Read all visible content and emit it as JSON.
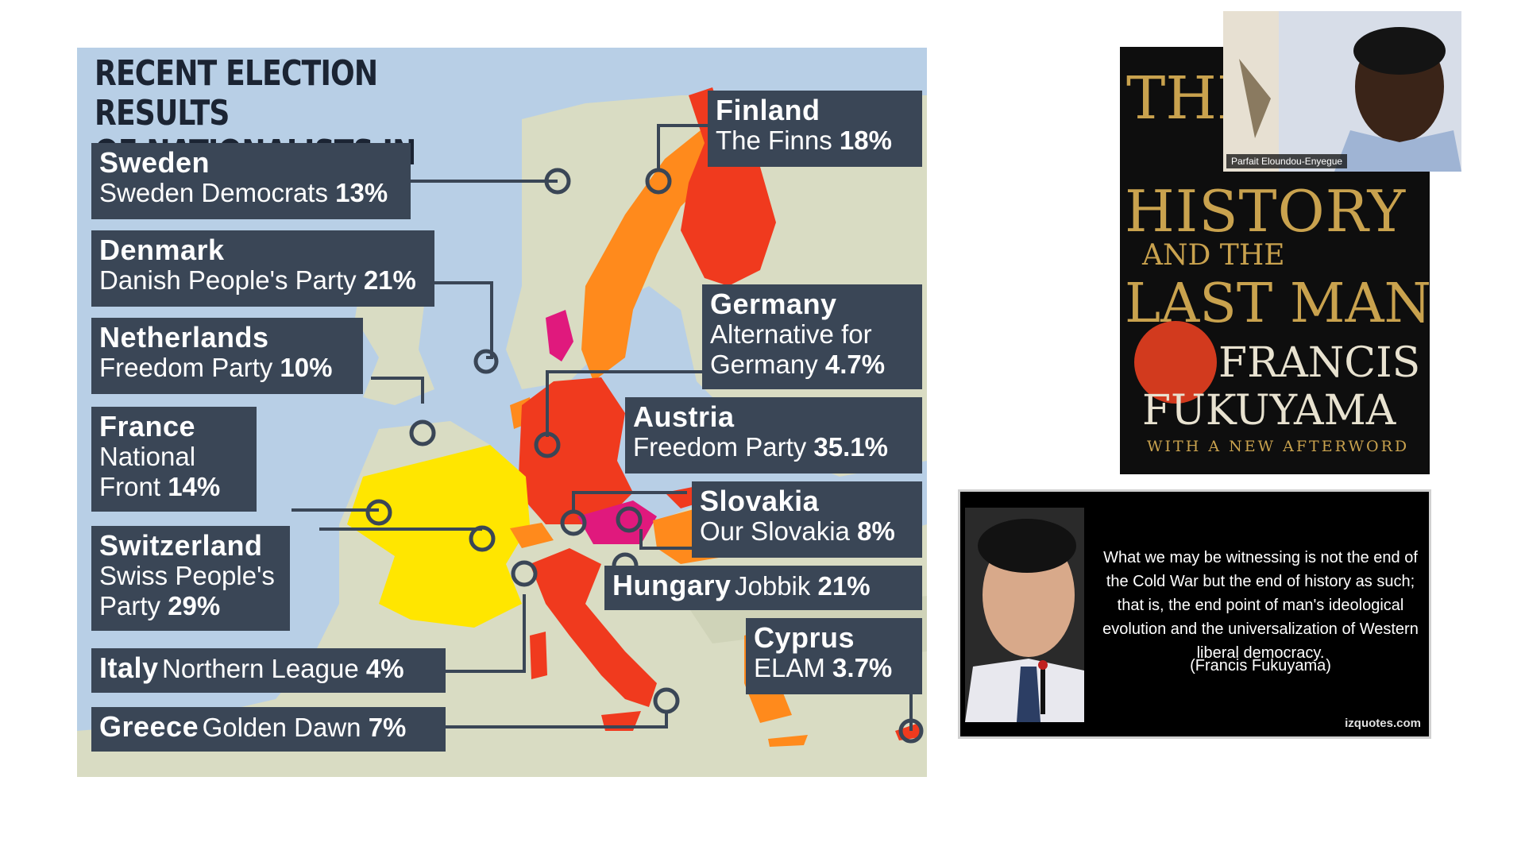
{
  "map": {
    "title_line1": "RECENT ELECTION RESULTS",
    "title_line2": "OF NATIONALISTS IN EUROPE",
    "labels": {
      "sweden": {
        "country": "Sweden",
        "party": "Sweden Democrats",
        "pct": "13%"
      },
      "denmark": {
        "country": "Denmark",
        "party": "Danish People's Party",
        "pct": "21%"
      },
      "netherlands": {
        "country": "Netherlands",
        "party": "Freedom Party",
        "pct": "10%"
      },
      "france": {
        "country": "France",
        "party1": "National",
        "party2": "Front",
        "pct": "14%"
      },
      "switzerland": {
        "country": "Switzerland",
        "party1": "Swiss People's",
        "party2": "Party",
        "pct": "29%"
      },
      "italy": {
        "country": "Italy",
        "party": "Northern League",
        "pct": "4%"
      },
      "greece": {
        "country": "Greece",
        "party": "Golden Dawn",
        "pct": "7%"
      },
      "finland": {
        "country": "Finland",
        "party": "The Finns",
        "pct": "18%"
      },
      "germany": {
        "country": "Germany",
        "party1": "Alternative for",
        "party2": "Germany",
        "pct": "4.7%"
      },
      "austria": {
        "country": "Austria",
        "party": "Freedom Party",
        "pct": "35.1%"
      },
      "slovakia": {
        "country": "Slovakia",
        "party": "Our Slovakia",
        "pct": "8%"
      },
      "hungary": {
        "country": "Hungary",
        "party": "Jobbik",
        "pct": "21%"
      },
      "cyprus": {
        "country": "Cyprus",
        "party": "ELAM",
        "pct": "3.7%"
      }
    },
    "colors": {
      "sea": "#b8cfe6",
      "land": "#d9dcc3",
      "label_bg": "#3a4656",
      "low": "#ffe600",
      "mid": "#ff8a1c",
      "high": "#f03a1e",
      "top": "#e0197d"
    }
  },
  "book": {
    "line1": "THE END OF",
    "line2": "HISTORY",
    "line3": "AND THE",
    "line4": "LAST MAN",
    "author1": "FRANCIS",
    "author2": "FUKUYAMA",
    "subtitle": "WITH A NEW AFTERWORD"
  },
  "webcam": {
    "name": "Parfait Eloundou-Enyegue"
  },
  "quote": {
    "text": "What we may be witnessing is not the end of the Cold War but the end of history as such; that is, the end point of man's ideological evolution and the universalization of Western liberal democracy.",
    "author": "(Francis Fukuyama)",
    "source": "izquotes.com"
  }
}
